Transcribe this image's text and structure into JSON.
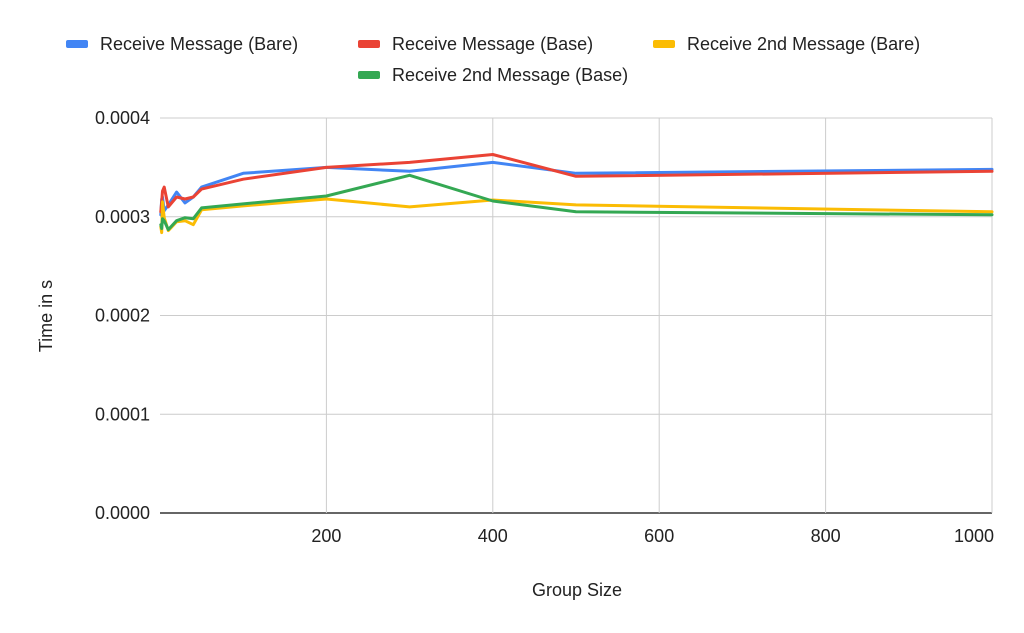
{
  "chart_data": {
    "type": "line",
    "title": "",
    "xlabel": "Group Size",
    "ylabel": "Time in s",
    "xlim": [
      0,
      1000
    ],
    "ylim": [
      0,
      0.0004
    ],
    "xticks": [
      200,
      400,
      600,
      800,
      1000
    ],
    "xtick_labels": [
      "200",
      "400",
      "600",
      "800",
      "1000"
    ],
    "yticks": [
      0,
      0.0001,
      0.0002,
      0.0003,
      0.0004
    ],
    "ytick_labels": [
      "0.0000",
      "0.0001",
      "0.0002",
      "0.0003",
      "0.0004"
    ],
    "grid": true,
    "legend_position": "top",
    "x": [
      1,
      2,
      3,
      5,
      10,
      20,
      30,
      40,
      50,
      100,
      200,
      300,
      400,
      500,
      1000
    ],
    "series": [
      {
        "name": "Receive Message (Bare)",
        "color": "#4285f4",
        "values": [
          0.000302,
          0.000318,
          0.00032,
          0.000306,
          0.000312,
          0.000325,
          0.000314,
          0.00032,
          0.00033,
          0.000344,
          0.00035,
          0.000346,
          0.000355,
          0.000344,
          0.000348
        ]
      },
      {
        "name": "Receive Message (Base)",
        "color": "#ea4335",
        "values": [
          0.000305,
          0.000315,
          0.000326,
          0.00033,
          0.00031,
          0.00032,
          0.000318,
          0.00032,
          0.000328,
          0.000338,
          0.00035,
          0.000355,
          0.000363,
          0.000341,
          0.000346
        ]
      },
      {
        "name": "Receive 2nd Message (Bare)",
        "color": "#fbbc04",
        "values": [
          0.00029,
          0.000284,
          0.000315,
          0.000299,
          0.000286,
          0.000295,
          0.000296,
          0.000292,
          0.000307,
          0.000311,
          0.000318,
          0.00031,
          0.000317,
          0.000312,
          0.000305
        ]
      },
      {
        "name": "Receive 2nd Message (Base)",
        "color": "#34a853",
        "values": [
          0.000292,
          0.000288,
          0.000298,
          0.000296,
          0.000287,
          0.000296,
          0.000299,
          0.000298,
          0.000309,
          0.000313,
          0.000321,
          0.000342,
          0.000316,
          0.000305,
          0.000302
        ]
      }
    ]
  }
}
